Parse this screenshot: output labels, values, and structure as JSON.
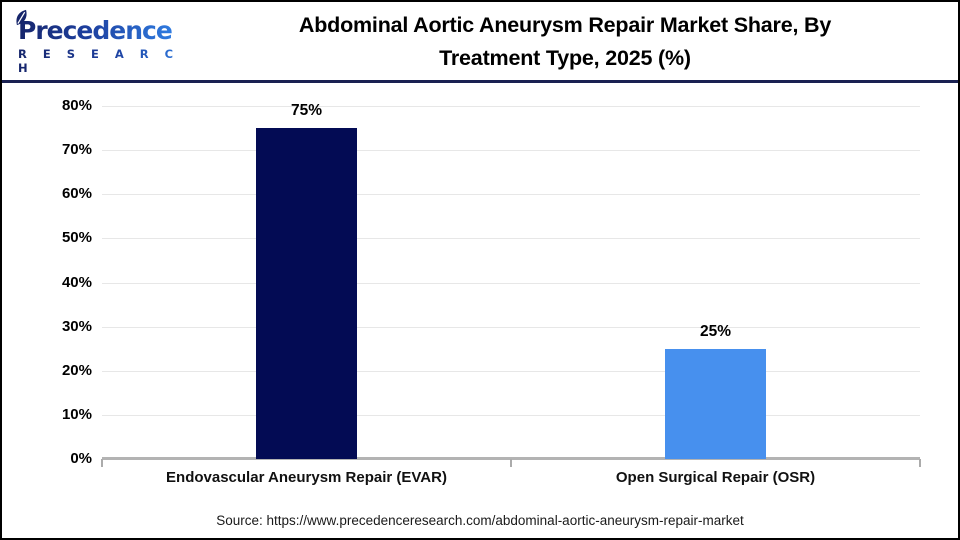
{
  "logo": {
    "name": "Precedence",
    "subtitle": "R E S E A R C H"
  },
  "header": {
    "title_line1": "Abdominal Aortic Aneurysm Repair Market Share, By",
    "title_line2": "Treatment Type, 2025 (%)"
  },
  "source": "Source: https://www.precedenceresearch.com/abdominal-aortic-aneurysm-repair-market",
  "colors": {
    "bar_evar_navy": "#030B54",
    "bar_osr_blue": "#4790EE",
    "header_rule": "#1A2152",
    "gridline": "#E7E7E7",
    "baseline": "#B3B3B3",
    "frame_border": "#000000",
    "logo_navy": "#16256B",
    "logo_blue": "#2F7BE0"
  },
  "chart_data": {
    "type": "bar",
    "title": "Abdominal Aortic Aneurysm Repair Market Share, By Treatment Type, 2025 (%)",
    "categories": [
      "Endovascular Aneurysm Repair (EVAR)",
      "Open Surgical Repair (OSR)"
    ],
    "values": [
      75,
      25
    ],
    "value_labels": [
      "75%",
      "25%"
    ],
    "bar_colors": [
      "#030B54",
      "#4790EE"
    ],
    "ylim": [
      0,
      80
    ],
    "y_tick_step": 10,
    "y_tick_labels": [
      "0%",
      "10%",
      "20%",
      "30%",
      "40%",
      "50%",
      "60%",
      "70%",
      "80%"
    ],
    "grid": true,
    "legend": false,
    "xlabel": "",
    "ylabel": ""
  }
}
